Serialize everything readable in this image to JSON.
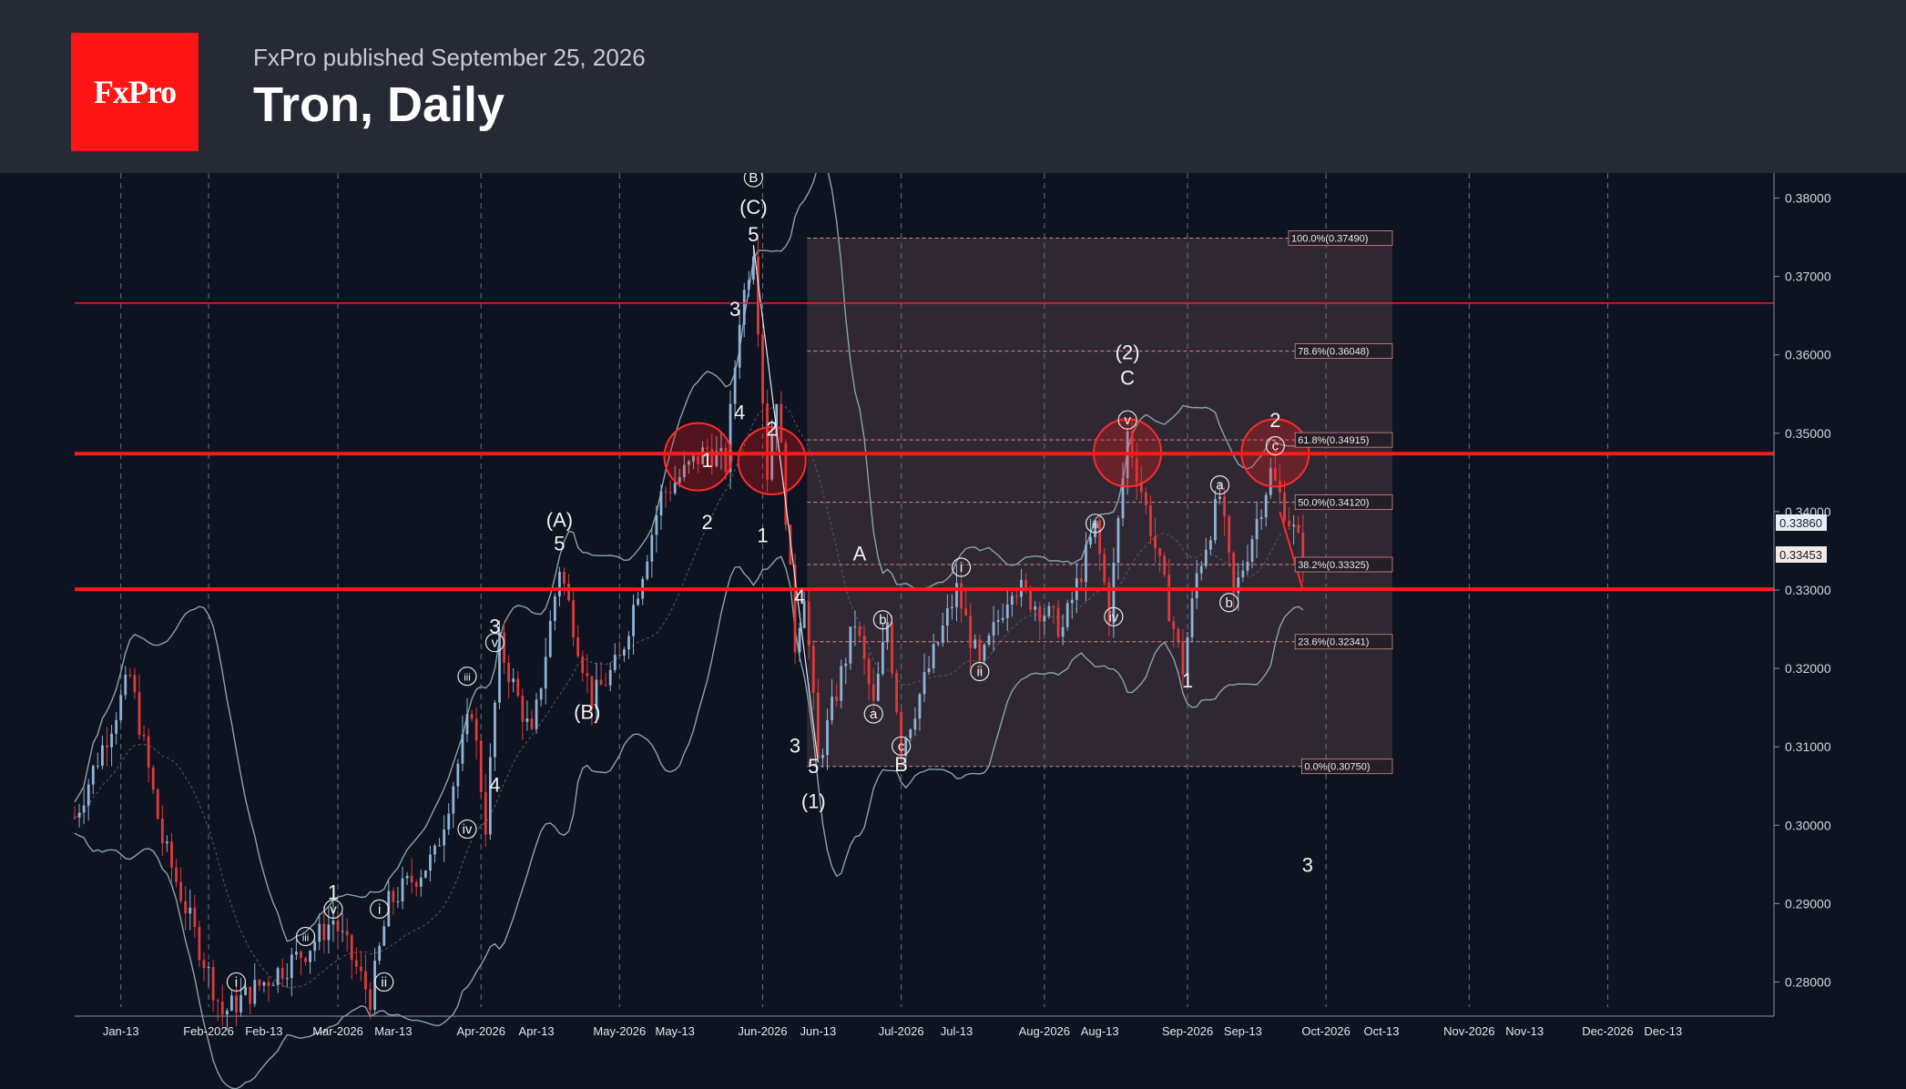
{
  "header": {
    "logo_text": "FxPro",
    "published": "FxPro published September 25, 2026",
    "title": "Tron, Daily"
  },
  "colors": {
    "background": "#0d1320",
    "header_bg": "#262a35",
    "logo_red": "#ff1515",
    "level_line": "#ff1a1a",
    "candle_up": "#8fb4d6",
    "candle_down": "#e03a3a",
    "bollinger": "#8aa3a8"
  },
  "chart_data": {
    "type": "candlestick",
    "x_ticks": [
      "Jan-13",
      "Feb-2026",
      "Feb-13",
      "Mar-2026",
      "Mar-13",
      "Apr-2026",
      "Apr-13",
      "May-2026",
      "May-13",
      "Jun-2026",
      "Jun-13",
      "Jul-2026",
      "Jul-13",
      "Aug-2026",
      "Aug-13",
      "Sep-2026",
      "Sep-13",
      "Oct-2026",
      "Oct-13",
      "Nov-2026",
      "Nov-13",
      "Dec-2026",
      "Dec-13"
    ],
    "y_ticks": [
      "0.38000",
      "0.37000",
      "0.36000",
      "0.35000",
      "0.34000",
      "0.33000",
      "0.32000",
      "0.31000",
      "0.30000",
      "0.29000",
      "0.28000"
    ],
    "ylim": [
      0.2768,
      0.3832
    ],
    "price_labels": {
      "current": "0.33453",
      "marker": "0.33860"
    },
    "horizontal_levels": [
      0.3666,
      0.3474,
      0.3301
    ],
    "fibonacci": {
      "x_range": [
        "Jun-13",
        "Oct-13"
      ],
      "levels": [
        {
          "value": 0.3749,
          "label": "100.0%(0.37490)"
        },
        {
          "value": 0.36048,
          "label": "78.6%(0.36048)"
        },
        {
          "value": 0.34915,
          "label": "61.8%(0.34915)"
        },
        {
          "value": 0.3412,
          "label": "50.0%(0.34120)"
        },
        {
          "value": 0.33325,
          "label": "38.2%(0.33325)"
        },
        {
          "value": 0.32341,
          "label": "23.6%(0.32341)"
        },
        {
          "value": 0.3075,
          "label": "0.0%(0.30750)"
        }
      ]
    },
    "wave_labels": [
      {
        "text": "1",
        "date": "2026-02-28",
        "price": 0.2915
      },
      {
        "text": "v",
        "date": "2026-02-28",
        "price": 0.2893,
        "circled": true
      },
      {
        "text": "i",
        "date": "2026-02-07",
        "price": 0.28,
        "circled": true
      },
      {
        "text": "iii",
        "date": "2026-02-22",
        "price": 0.2858,
        "circled": true
      },
      {
        "text": "i",
        "date": "2026-03-10",
        "price": 0.2893,
        "circled": true
      },
      {
        "text": "ii",
        "date": "2026-03-11",
        "price": 0.28,
        "circled": true
      },
      {
        "text": "iii",
        "date": "2026-03-29",
        "price": 0.319,
        "circled": true
      },
      {
        "text": "iv",
        "date": "2026-03-29",
        "price": 0.2995,
        "circled": true
      },
      {
        "text": "3",
        "date": "2026-04-04",
        "price": 0.3254
      },
      {
        "text": "v",
        "date": "2026-04-04",
        "price": 0.3233,
        "circled": true
      },
      {
        "text": "4",
        "date": "2026-04-04",
        "price": 0.3052
      },
      {
        "text": "(A)",
        "date": "2026-04-18",
        "price": 0.339
      },
      {
        "text": "5",
        "date": "2026-04-18",
        "price": 0.336
      },
      {
        "text": "(B)",
        "date": "2026-04-24",
        "price": 0.3145
      },
      {
        "text": "1",
        "date": "2026-05-20",
        "price": 0.3466
      },
      {
        "text": "2",
        "date": "2026-05-20",
        "price": 0.3387
      },
      {
        "text": "3",
        "date": "2026-05-26",
        "price": 0.3659
      },
      {
        "text": "4",
        "date": "2026-05-27",
        "price": 0.3527
      },
      {
        "text": "B",
        "date": "2026-05-30",
        "price": 0.3826,
        "circled": true
      },
      {
        "text": "(C)",
        "date": "2026-05-30",
        "price": 0.3789
      },
      {
        "text": "5",
        "date": "2026-05-30",
        "price": 0.3754
      },
      {
        "text": "2",
        "date": "2026-06-03",
        "price": 0.3506
      },
      {
        "text": "1",
        "date": "2026-06-01",
        "price": 0.337
      },
      {
        "text": "4",
        "date": "2026-06-09",
        "price": 0.3292
      },
      {
        "text": "3",
        "date": "2026-06-08",
        "price": 0.3102
      },
      {
        "text": "5",
        "date": "2026-06-12",
        "price": 0.3076
      },
      {
        "text": "(1)",
        "date": "2026-06-12",
        "price": 0.3031
      },
      {
        "text": "A",
        "date": "2026-06-22",
        "price": 0.3347
      },
      {
        "text": "b",
        "date": "2026-06-27",
        "price": 0.3262,
        "circled": true
      },
      {
        "text": "a",
        "date": "2026-06-25",
        "price": 0.3142,
        "circled": true
      },
      {
        "text": "c",
        "date": "2026-07-01",
        "price": 0.3101,
        "circled": true
      },
      {
        "text": "B",
        "date": "2026-07-01",
        "price": 0.3078
      },
      {
        "text": "i",
        "date": "2026-07-14",
        "price": 0.3329,
        "circled": true
      },
      {
        "text": "ii",
        "date": "2026-07-18",
        "price": 0.3196,
        "circled": true
      },
      {
        "text": "iii",
        "date": "2026-08-12",
        "price": 0.3385,
        "circled": true
      },
      {
        "text": "iv",
        "date": "2026-08-16",
        "price": 0.3266,
        "circled": true
      },
      {
        "text": "(2)",
        "date": "2026-08-19",
        "price": 0.3604
      },
      {
        "text": "C",
        "date": "2026-08-19",
        "price": 0.3571
      },
      {
        "text": "v",
        "date": "2026-08-19",
        "price": 0.3517,
        "circled": true
      },
      {
        "text": "1",
        "date": "2026-09-01",
        "price": 0.3185
      },
      {
        "text": "a",
        "date": "2026-09-08",
        "price": 0.3434,
        "circled": true
      },
      {
        "text": "b",
        "date": "2026-09-10",
        "price": 0.3284,
        "circled": true
      },
      {
        "text": "2",
        "date": "2026-09-20",
        "price": 0.3517
      },
      {
        "text": "c",
        "date": "2026-09-20",
        "price": 0.3484,
        "circled": true
      },
      {
        "text": "3",
        "date": "2026-09-27",
        "price": 0.295
      }
    ]
  }
}
